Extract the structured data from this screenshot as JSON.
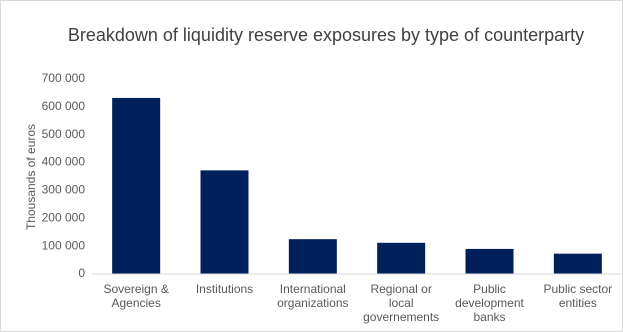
{
  "chart_data": {
    "type": "bar",
    "title": "Breakdown of liquidity reserve exposures by type of counterparty",
    "y_label": "Thousands of euros",
    "categories": [
      "Sovereign & Agencies",
      "Institutions",
      "International organizations",
      "Regional or local governements",
      "Public development banks",
      "Public sector entities"
    ],
    "values": [
      632000,
      372000,
      125000,
      112000,
      90000,
      73000
    ],
    "color": "#00205b",
    "ylim": [
      0,
      700000
    ],
    "yticks": [
      0,
      {
        "value": 100000,
        "label": "100 000"
      },
      {
        "value": 200000,
        "label": "200 000"
      },
      {
        "value": 300000,
        "label": "300 000"
      },
      {
        "value": 400000,
        "label": "400 000"
      },
      {
        "value": 500000,
        "label": "500 000"
      },
      {
        "value": 600000,
        "label": "600 000"
      },
      {
        "value": 700000,
        "label": "700 000"
      }
    ],
    "grid": false
  }
}
